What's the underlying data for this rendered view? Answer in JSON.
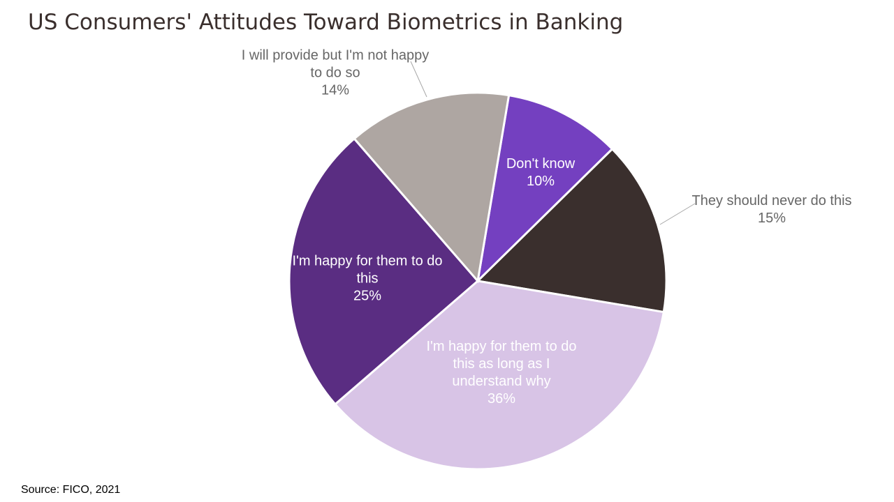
{
  "chart_data": {
    "type": "pie",
    "title": "US Consumers' Attitudes Toward Biometrics in Banking",
    "source": "Source: FICO, 2021",
    "categories": [
      "Don't know",
      "They should never do this",
      "I'm happy for them to do this as long as I understand why",
      "I'm happy for them to do this",
      "I will provide but I'm not happy to do so"
    ],
    "values": [
      10,
      15,
      36,
      25,
      14
    ],
    "value_labels": [
      "10%",
      "15%",
      "36%",
      "25%",
      "14%"
    ],
    "colors": [
      "#7440c0",
      "#3a2f2d",
      "#d8c4e6",
      "#5a2d82",
      "#aea6a2"
    ]
  }
}
